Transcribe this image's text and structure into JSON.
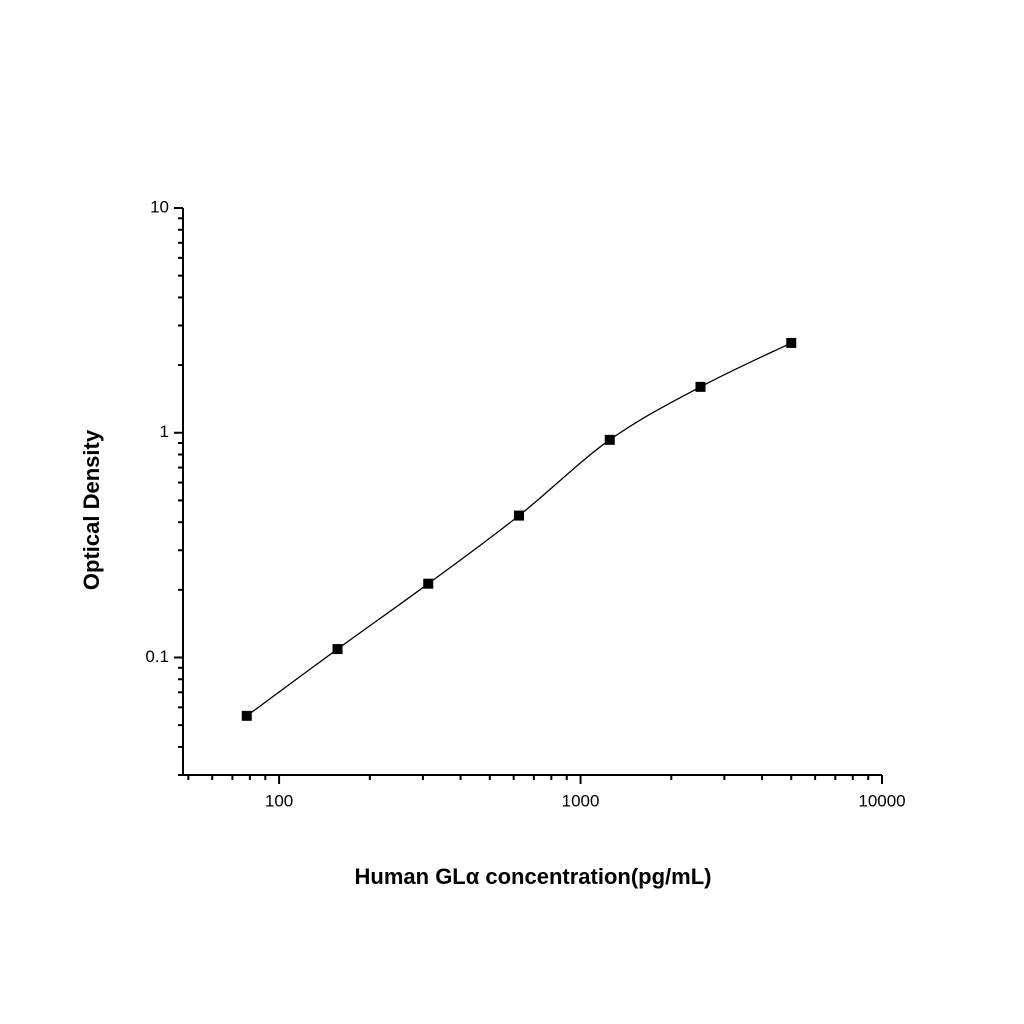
{
  "chart_data": {
    "type": "scatter",
    "x_label": "Human GLα  concentration(pg/mL)",
    "y_label": "Optical Density",
    "x_log": true,
    "y_log": true,
    "fit_curve": true,
    "series": [
      {
        "color": "#000000",
        "x": [
          78.125,
          156.25,
          312.5,
          625,
          1250,
          2500,
          5000
        ],
        "values": [
          0.055,
          0.109,
          0.213,
          0.428,
          0.93,
          1.6,
          2.51
        ]
      }
    ],
    "xlim": [
      48,
      10000
    ],
    "xticks": [
      100,
      1000,
      10000
    ],
    "xminorticks": [
      50,
      60,
      70,
      80,
      90,
      200,
      300,
      400,
      500,
      600,
      700,
      800,
      900,
      2000,
      3000,
      4000,
      5000,
      6000,
      7000,
      8000,
      9000
    ],
    "ylim": [
      0.03,
      10
    ],
    "yticks": [
      0.1,
      1,
      10
    ],
    "yminorticks": [
      0.03,
      0.04,
      0.05,
      0.06,
      0.07,
      0.08,
      0.09,
      0.2,
      0.3,
      0.4,
      0.5,
      0.6,
      0.7,
      0.8,
      0.9,
      2,
      3,
      4,
      5,
      6,
      7,
      8,
      9
    ]
  }
}
